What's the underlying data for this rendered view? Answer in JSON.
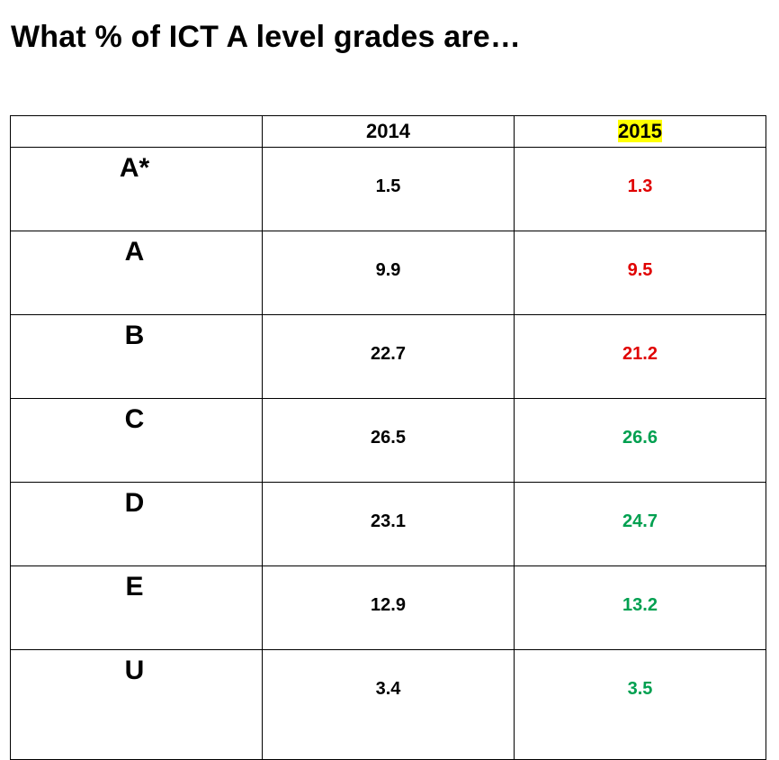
{
  "title": "What % of ICT A level grades are…",
  "colors": {
    "decrease": "#e00000",
    "increase": "#00a050",
    "header_highlight": "#ffff00"
  },
  "table": {
    "headers": [
      "",
      "2014",
      "2015"
    ],
    "rows": [
      {
        "grade": "A*",
        "y2014": "1.5",
        "y2015": "1.3",
        "trend": "decrease"
      },
      {
        "grade": "A",
        "y2014": "9.9",
        "y2015": "9.5",
        "trend": "decrease"
      },
      {
        "grade": "B",
        "y2014": "22.7",
        "y2015": "21.2",
        "trend": "decrease"
      },
      {
        "grade": "C",
        "y2014": "26.5",
        "y2015": "26.6",
        "trend": "increase"
      },
      {
        "grade": "D",
        "y2014": "23.1",
        "y2015": "24.7",
        "trend": "increase"
      },
      {
        "grade": "E",
        "y2014": "12.9",
        "y2015": "13.2",
        "trend": "increase"
      },
      {
        "grade": "U",
        "y2014": "3.4",
        "y2015": "3.5",
        "trend": "increase"
      }
    ]
  }
}
